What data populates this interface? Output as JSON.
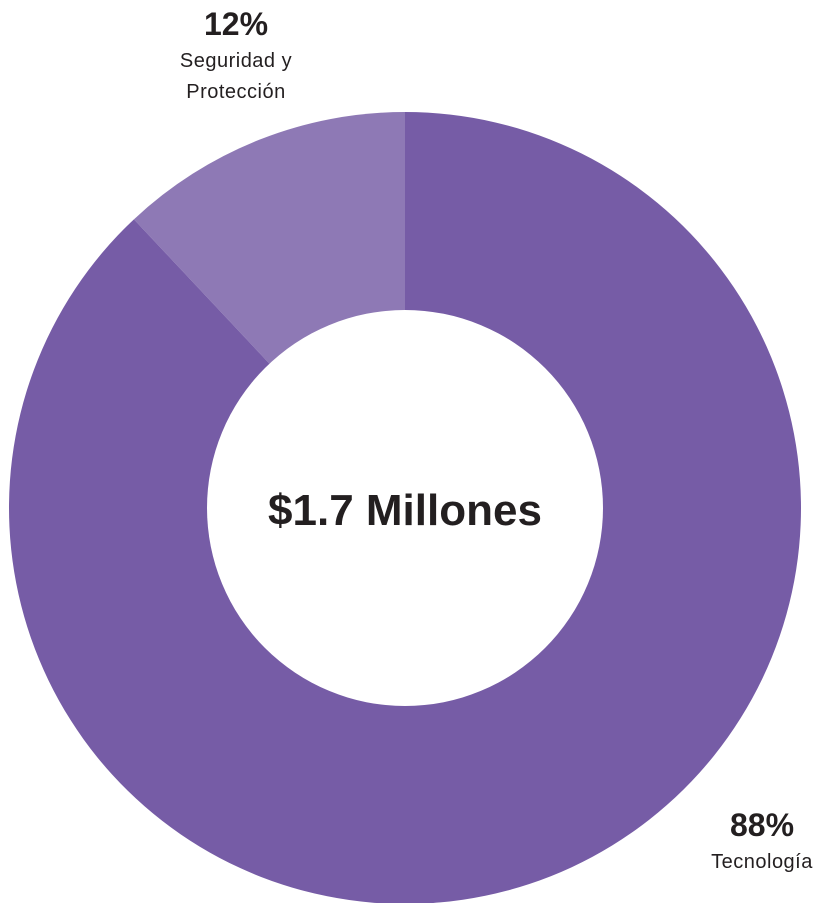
{
  "chart_data": {
    "type": "pie",
    "center_label": "$1.7 Millones",
    "slices": [
      {
        "label_lines": [
          "Seguridad y",
          "Protección"
        ],
        "percent_label": "12%",
        "value": 12,
        "color": "#8e79b5"
      },
      {
        "label_lines": [
          "Tecnología"
        ],
        "percent_label": "88%",
        "value": 88,
        "color": "#765ca6"
      }
    ]
  }
}
